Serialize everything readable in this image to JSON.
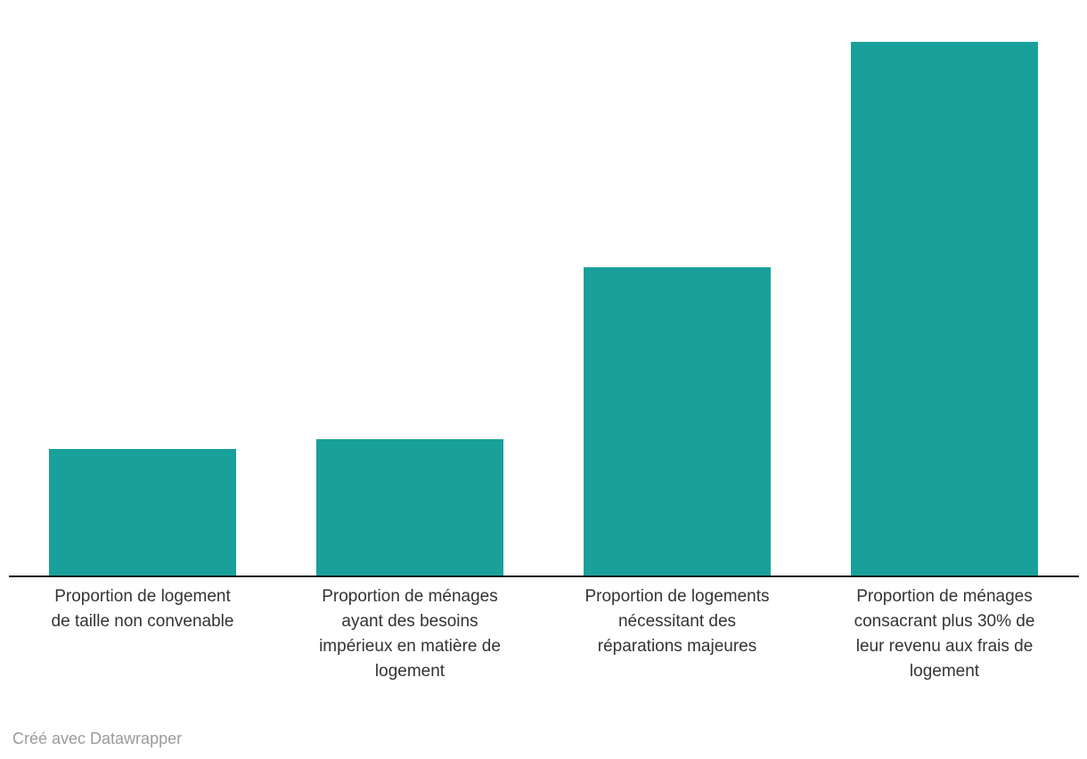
{
  "chart_data": {
    "type": "bar",
    "orientation": "vertical",
    "title": "",
    "xlabel": "",
    "ylabel": "",
    "grid": false,
    "legend": "none",
    "value_labels_shown": false,
    "ylim": [
      0,
      100
    ],
    "categories": [
      "Proportion de logement de taille non convenable",
      "Proportion de ménages ayant des besoins impérieux en matière de logement",
      "Proportion de logements nécessitant des réparations majeures",
      "Proportion de ménages consacrant plus 30% de leur revenu aux frais de logement"
    ],
    "label_lines": [
      [
        "Proportion de logement",
        "de taille non convenable"
      ],
      [
        "Proportion de ménages",
        "ayant des besoins",
        "impérieux en matière de",
        "logement"
      ],
      [
        "Proportion de logements",
        "nécessitant des",
        "réparations majeures"
      ],
      [
        "Proportion de ménages",
        "consacrant plus 30% de",
        "leur revenu aux frais de",
        "logement"
      ]
    ],
    "values": [
      23.7,
      25.5,
      57.8,
      100
    ],
    "bar_color": "#19a09a",
    "axis_color": "#131313",
    "label_color": "#333333"
  },
  "footer": {
    "attribution": "Créé avec Datawrapper",
    "color": "#9b9b9b"
  }
}
